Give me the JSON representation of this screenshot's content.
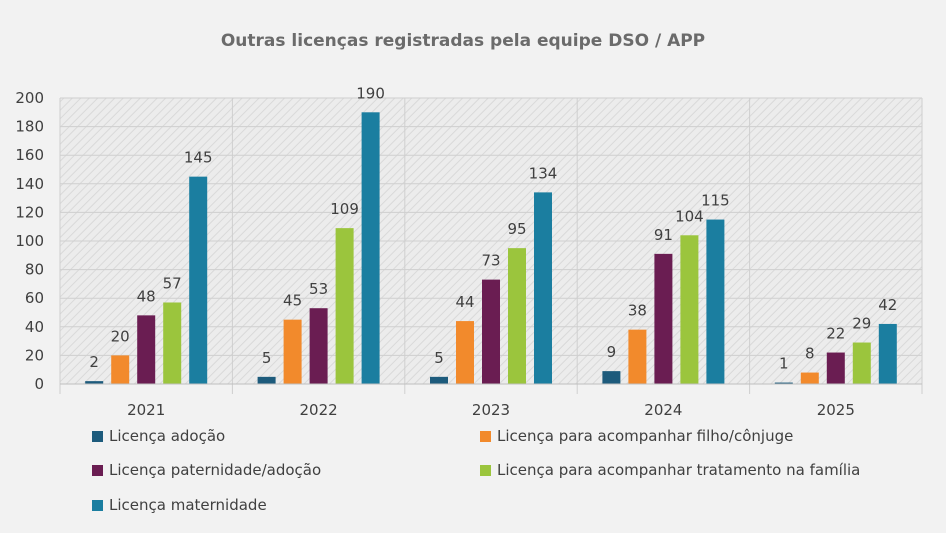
{
  "chart_data": {
    "type": "bar",
    "title": "Outras licenças registradas pela equipe DSO / APP",
    "xlabel": "",
    "ylabel": "",
    "categories": [
      "2021",
      "2022",
      "2023",
      "2024",
      "2025"
    ],
    "ylim": [
      0,
      200
    ],
    "yticks": [
      0,
      20,
      40,
      60,
      80,
      100,
      120,
      140,
      160,
      180,
      200
    ],
    "grid": true,
    "legend_position": "bottom",
    "series": [
      {
        "name": "Licença adoção",
        "color": "#1d5b7c",
        "values": [
          2,
          5,
          5,
          9,
          1
        ]
      },
      {
        "name": "Licença para acompanhar filho/cônjuge",
        "color": "#f28a2c",
        "values": [
          20,
          45,
          44,
          38,
          8
        ]
      },
      {
        "name": "Licença paternidade/adoção",
        "color": "#6a1d52",
        "values": [
          48,
          53,
          73,
          91,
          22
        ]
      },
      {
        "name": "Licença para acompanhar tratamento na família",
        "color": "#9bc53d",
        "values": [
          57,
          109,
          95,
          104,
          29
        ]
      },
      {
        "name": "Licença maternidade",
        "color": "#1b7ea0",
        "values": [
          145,
          190,
          134,
          115,
          42
        ]
      }
    ]
  }
}
